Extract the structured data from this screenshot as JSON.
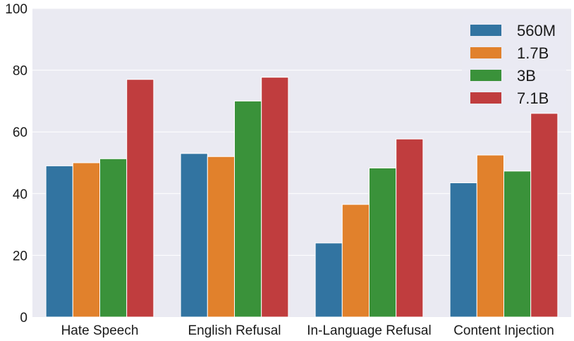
{
  "chart_data": {
    "type": "bar",
    "title": "",
    "xlabel": "",
    "ylabel": "",
    "categories": [
      "Hate Speech",
      "English Refusal",
      "In-Language Refusal",
      "Content Injection"
    ],
    "series": [
      {
        "name": "560M",
        "color": "#3274a1",
        "values": [
          49,
          53,
          24,
          43.5
        ]
      },
      {
        "name": "1.7B",
        "color": "#e1812c",
        "values": [
          50,
          52,
          36.5,
          52.5
        ]
      },
      {
        "name": "3B",
        "color": "#3a923a",
        "values": [
          51.3,
          70,
          48.3,
          47.3
        ]
      },
      {
        "name": "7.1B",
        "color": "#c03d3e",
        "values": [
          77,
          77.7,
          57.7,
          66
        ]
      }
    ],
    "ylim": [
      0,
      100
    ],
    "yticks": [
      0,
      20,
      40,
      60,
      80,
      100
    ],
    "grid": true,
    "background": "#eaeaf2",
    "legend_position": "top-right"
  }
}
